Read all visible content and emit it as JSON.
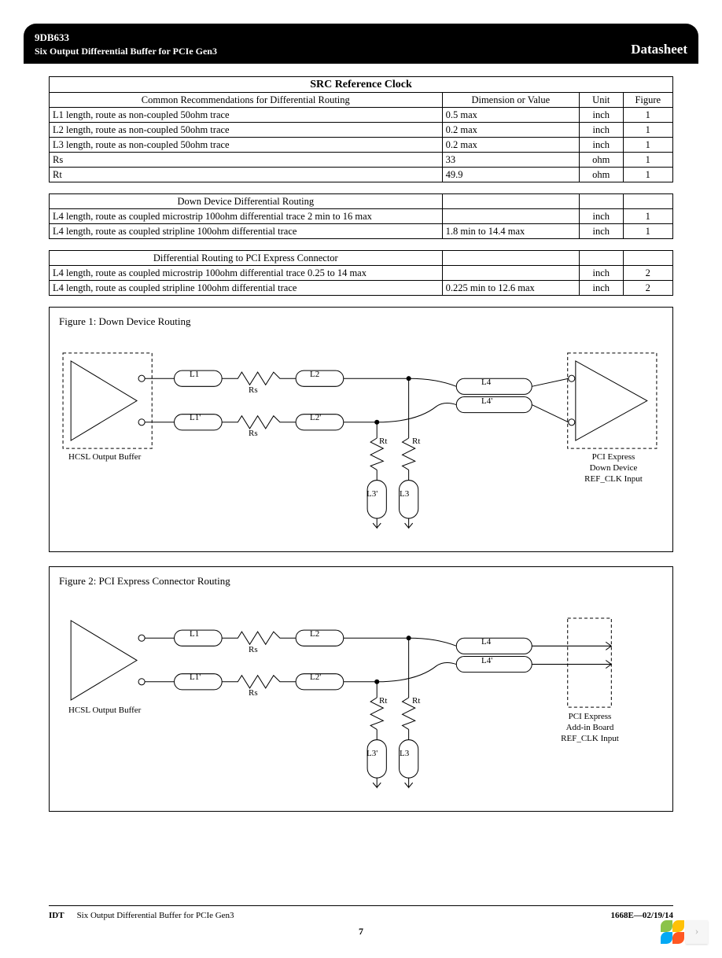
{
  "header": {
    "part_number": "9DB633",
    "subtitle": "Six Output Differential Buffer for PCIe Gen3",
    "doc_type": "Datasheet"
  },
  "table1": {
    "title": "SRC Reference Clock",
    "headers": [
      "Common Recommendations for Differential Routing",
      "Dimension or Value",
      "Unit",
      "Figure"
    ],
    "rows": [
      [
        "L1 length, route as non-coupled 50ohm trace",
        "0.5 max",
        "inch",
        "1"
      ],
      [
        "L2 length, route as non-coupled 50ohm trace",
        "0.2 max",
        "inch",
        "1"
      ],
      [
        "L3 length, route as non-coupled 50ohm trace",
        "0.2 max",
        "inch",
        "1"
      ],
      [
        "Rs",
        "33",
        "ohm",
        "1"
      ],
      [
        "Rt",
        "49.9",
        "ohm",
        "1"
      ]
    ]
  },
  "table2": {
    "headers": [
      "Down Device Differential Routing",
      "",
      "",
      ""
    ],
    "rows": [
      [
        "L4 length, route as coupled microstrip 100ohm differential trace 2 min to 16 max",
        "",
        "inch",
        "1"
      ],
      [
        "L4 length, route as coupled stripline 100ohm differential trace",
        "1.8 min to 14.4 max",
        "inch",
        "1"
      ]
    ]
  },
  "table3": {
    "headers": [
      "Differential Routing to PCI Express Connector",
      "",
      "",
      ""
    ],
    "rows": [
      [
        "L4 length, route as coupled microstrip 100ohm differential trace 0.25 to 14 max",
        "",
        "inch",
        "2"
      ],
      [
        "L4 length, route as coupled stripline 100ohm differential trace",
        "0.225 min to 12.6 max",
        "inch",
        "2"
      ]
    ]
  },
  "figure1": {
    "title": "Figure 1: Down Device Routing",
    "labels": {
      "L1": "L1",
      "L1p": "L1'",
      "L2": "L2",
      "L2p": "L2'",
      "L3": "L3",
      "L3p": "L3'",
      "L4": "L4",
      "L4p": "L4'",
      "Rs_top": "Rs",
      "Rs_bot": "Rs",
      "Rt_left": "Rt",
      "Rt_right": "Rt",
      "left_caption": "HCSL Output Buffer",
      "right_caption_l1": "PCI Express",
      "right_caption_l2": "Down Device",
      "right_caption_l3": "REF_CLK Input"
    }
  },
  "figure2": {
    "title": "Figure 2: PCI Express Connector Routing",
    "labels": {
      "L1": "L1",
      "L1p": "L1'",
      "L2": "L2",
      "L2p": "L2'",
      "L3": "L3",
      "L3p": "L3'",
      "L4": "L4",
      "L4p": "L4'",
      "Rs_top": "Rs",
      "Rs_bot": "Rs",
      "Rt_left": "Rt",
      "Rt_right": "Rt",
      "left_caption": "HCSL Output Buffer",
      "right_caption_l1": "PCI Express",
      "right_caption_l2": "Add-in Board",
      "right_caption_l3": "REF_CLK Input"
    }
  },
  "footer": {
    "company": "IDT",
    "title": "Six Output Differential Buffer for PCIe Gen3",
    "doc_rev": "1668E—02/19/14",
    "page": "7"
  },
  "style": {
    "bg": "#ffffff",
    "text": "#000000",
    "stroke_width": 1,
    "dash": "4,3",
    "widget_colors": [
      "#8bc34a",
      "#ffc107",
      "#03a9f4",
      "#ff5722"
    ]
  }
}
